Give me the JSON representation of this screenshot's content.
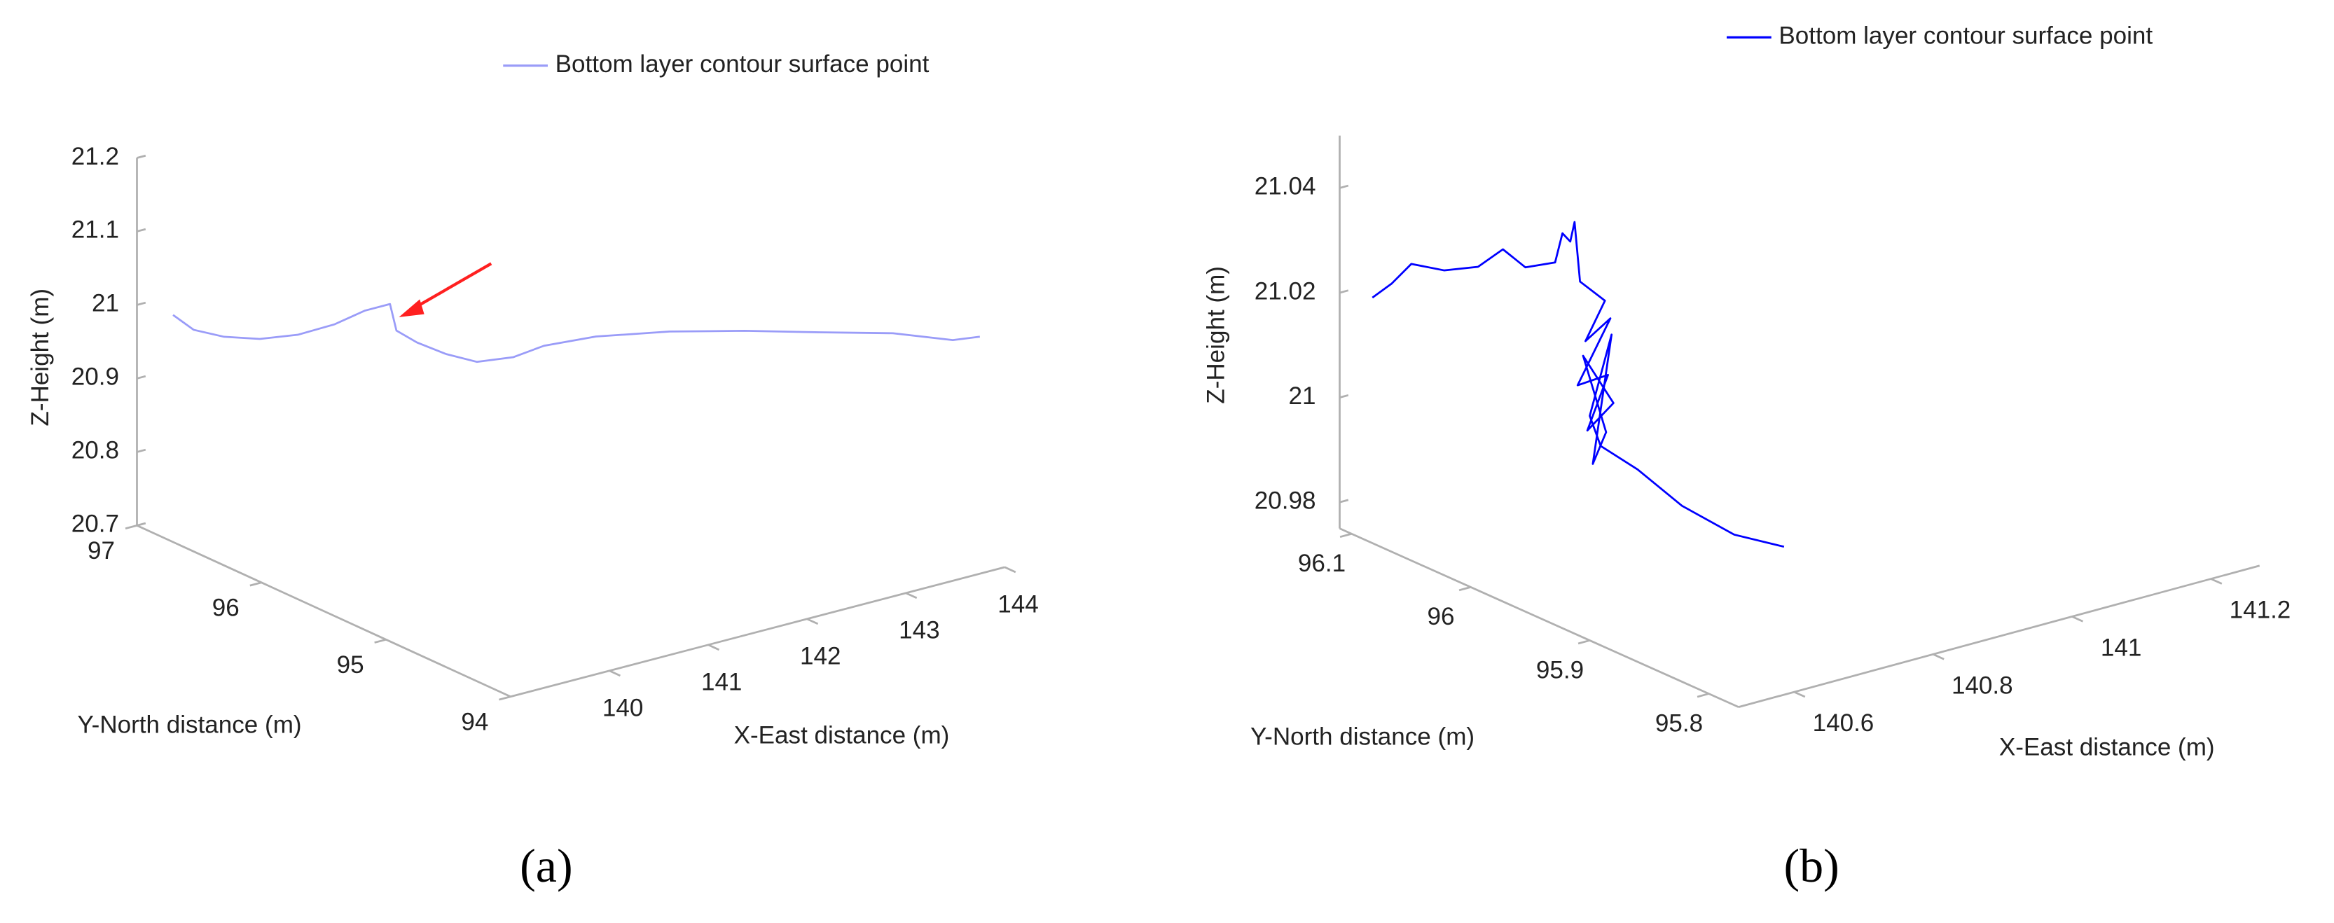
{
  "chart_data": [
    {
      "type": "line3d",
      "caption": "(a)",
      "xlabel": "X-East distance (m)",
      "ylabel": "Y-North distance (m)",
      "zlabel": "Z-Height (m)",
      "xlim": [
        139,
        144
      ],
      "ylim": [
        94,
        97
      ],
      "zlim": [
        20.7,
        21.2
      ],
      "xticks": [
        140,
        141,
        142,
        143,
        144
      ],
      "yticks": [
        94,
        95,
        96,
        97
      ],
      "zticks": [
        20.7,
        20.8,
        20.9,
        21,
        21.1,
        21.2
      ],
      "legend": "top",
      "series": [
        {
          "name": "Bottom layer contour surface point",
          "color": "#9a9cf8",
          "x": [
            139.34,
            139.46,
            139.63,
            139.84,
            140.06,
            140.27,
            140.45,
            140.59,
            140.63,
            140.75,
            140.92,
            141.09,
            141.31,
            141.48,
            141.78,
            142.21,
            142.64,
            143.07,
            143.5,
            143.84,
            144.0
          ],
          "y": [
            96.98,
            96.91,
            96.8,
            96.68,
            96.55,
            96.42,
            96.32,
            96.23,
            96.21,
            96.14,
            96.04,
            95.93,
            95.81,
            95.7,
            95.52,
            95.27,
            95.01,
            94.75,
            94.5,
            94.29,
            94.2
          ],
          "z": [
            20.976,
            20.957,
            20.95,
            20.949,
            20.957,
            20.974,
            20.994,
            21.005,
            20.969,
            20.954,
            20.94,
            20.932,
            20.94,
            20.958,
            20.974,
            20.985,
            20.991,
            20.994,
            20.997,
            20.992,
            20.998
          ]
        }
      ]
    },
    {
      "type": "line3d",
      "caption": "(b)",
      "xlabel": "X-East distance (m)",
      "ylabel": "Y-North distance (m)",
      "zlabel": "Z-Height (m)",
      "xlim": [
        140.52,
        141.27
      ],
      "ylim": [
        95.775,
        96.11
      ],
      "zlim": [
        20.975,
        21.05
      ],
      "xticks": [
        140.6,
        140.8,
        141,
        141.2
      ],
      "yticks": [
        95.8,
        95.9,
        96,
        96.1
      ],
      "zticks": [
        20.98,
        21,
        21.02,
        21.04
      ],
      "legend": "top",
      "series": [
        {
          "name": "Bottom layer contour surface point",
          "color": "#0000ff",
          "x": [
            140.55,
            140.554,
            140.558,
            140.564,
            140.57,
            140.575,
            140.58,
            140.585,
            140.587,
            140.588,
            140.589,
            140.59,
            140.595,
            140.591,
            140.596,
            140.59,
            140.596,
            140.592,
            140.597,
            140.591,
            140.595,
            140.593,
            140.596,
            140.592,
            140.594,
            140.601,
            140.61,
            140.62,
            140.63
          ],
          "y": [
            96.1,
            96.086,
            96.072,
            96.048,
            96.023,
            96.005,
            95.989,
            95.967,
            95.962,
            95.956,
            95.953,
            95.949,
            95.931,
            95.945,
            95.927,
            95.951,
            95.929,
            95.944,
            95.925,
            95.947,
            95.93,
            95.94,
            95.926,
            95.942,
            95.934,
            95.907,
            95.875,
            95.837,
            95.801
          ],
          "z": [
            21.019,
            21.023,
            21.028,
            21.029,
            21.032,
            21.037,
            21.035,
            21.038,
            21.044,
            21.043,
            21.047,
            21.036,
            21.034,
            21.025,
            21.031,
            21.016,
            21.02,
            21.008,
            21.015,
            21.022,
            21.009,
            21.002,
            21.028,
            21.011,
            21.006,
            21.004,
            21.0,
            20.998,
            20.999
          ]
        }
      ]
    }
  ]
}
